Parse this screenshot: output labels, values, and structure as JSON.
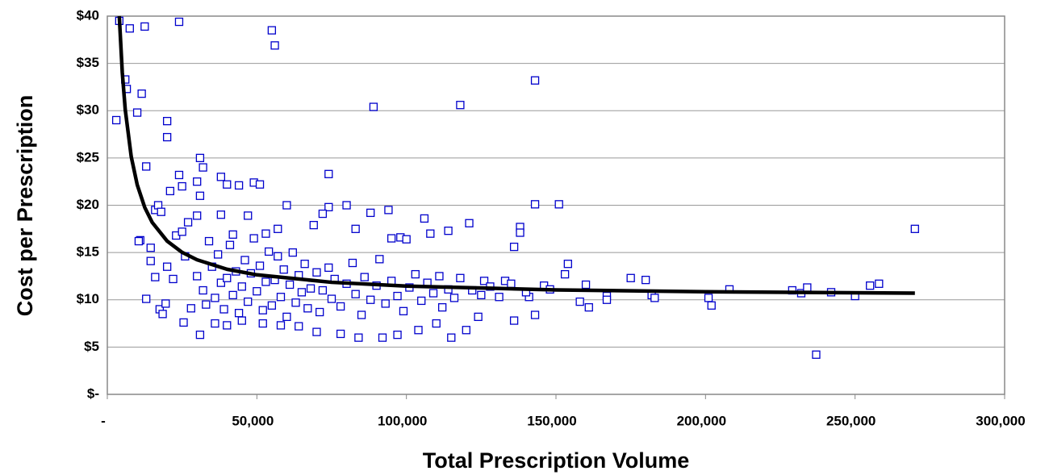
{
  "chart_data": {
    "type": "scatter",
    "x_label": "Total Prescription Volume",
    "y_label": "Cost per Prescription",
    "xlim": [
      0,
      300000
    ],
    "ylim": [
      0,
      40
    ],
    "xticks": [
      {
        "value": 0,
        "label": "-"
      },
      {
        "value": 50000,
        "label": "50,000"
      },
      {
        "value": 100000,
        "label": "100,000"
      },
      {
        "value": 150000,
        "label": "150,000"
      },
      {
        "value": 200000,
        "label": "200,000"
      },
      {
        "value": 250000,
        "label": "250,000"
      },
      {
        "value": 300000,
        "label": "300,000"
      }
    ],
    "yticks": [
      {
        "value": 0,
        "label": "$-"
      },
      {
        "value": 5,
        "label": "$5"
      },
      {
        "value": 10,
        "label": "$10"
      },
      {
        "value": 15,
        "label": "$15"
      },
      {
        "value": 20,
        "label": "$20"
      },
      {
        "value": 25,
        "label": "$25"
      },
      {
        "value": 30,
        "label": "$30"
      },
      {
        "value": 35,
        "label": "$35"
      },
      {
        "value": 40,
        "label": "$40"
      }
    ],
    "grid": true,
    "series": [
      {
        "type": "scatter",
        "color": "#0000cc",
        "x": [
          4000,
          3000,
          6000,
          6500,
          7500,
          10000,
          11500,
          12500,
          20000,
          20000,
          24000,
          55000,
          56000,
          89000,
          118000,
          143000,
          237000,
          270000,
          143000,
          151000,
          13000,
          31000,
          32000,
          24000,
          38000,
          74000,
          49000,
          51000,
          44000,
          30000,
          40000,
          25000,
          21000,
          31000,
          60000,
          80000,
          74000,
          94000,
          88000,
          72000,
          16000,
          17000,
          18000,
          30000,
          69000,
          106000,
          121000,
          138000,
          136000,
          138000,
          83000,
          108000,
          114000,
          98000,
          100000,
          95000,
          11000,
          10500,
          14500,
          14500,
          13000,
          16000,
          17500,
          18500,
          19500,
          25500,
          31000,
          175000,
          180000,
          154000,
          153000,
          160000,
          161000,
          158000,
          167000,
          167000,
          182000,
          183000,
          201000,
          202000,
          208000,
          229000,
          232000,
          234000,
          242000,
          250000,
          255000,
          258000,
          146000,
          143000,
          136000,
          148000,
          141000,
          133000,
          126000,
          124000,
          120000,
          115000,
          110000,
          104000,
          97000,
          92000,
          84000,
          78000,
          70000,
          64000,
          58000,
          52000,
          45000,
          40000,
          36000,
          30000,
          32000,
          33000,
          35000,
          36000,
          37000,
          38000,
          39000,
          40000,
          41000,
          42000,
          43000,
          44000,
          45000,
          46000,
          47000,
          48000,
          49000,
          50000,
          51000,
          52000,
          53000,
          54000,
          55000,
          56000,
          57000,
          58000,
          59000,
          60000,
          61000,
          62000,
          63000,
          64000,
          65000,
          66000,
          67000,
          68000,
          70000,
          71000,
          72000,
          74000,
          75000,
          76000,
          78000,
          80000,
          82000,
          83000,
          85000,
          86000,
          88000,
          90000,
          91000,
          93000,
          95000,
          97000,
          99000,
          101000,
          103000,
          105000,
          107000,
          109000,
          111000,
          112000,
          114000,
          116000,
          118000,
          122000,
          125000,
          128000,
          131000,
          135000,
          140000,
          20000,
          22000,
          23000,
          26000,
          27000,
          28000,
          25000,
          34000,
          38000,
          42000,
          47000,
          53000,
          57000
        ],
        "values": [
          39.5,
          29,
          33.3,
          32.3,
          38.7,
          29.8,
          31.8,
          38.9,
          28.9,
          27.2,
          39.4,
          38.5,
          36.9,
          30.4,
          30.6,
          33.2,
          4.2,
          17.5,
          20.1,
          20.1,
          24.1,
          25.0,
          24.0,
          23.2,
          23.0,
          23.3,
          22.4,
          22.2,
          22.1,
          22.5,
          22.2,
          22.0,
          21.5,
          21.0,
          20.0,
          20.0,
          19.8,
          19.5,
          19.2,
          19.1,
          19.5,
          20.0,
          19.3,
          18.9,
          17.9,
          18.6,
          18.1,
          17.7,
          15.6,
          17.1,
          17.5,
          17.0,
          17.3,
          16.6,
          16.4,
          16.5,
          16.3,
          16.2,
          15.5,
          14.1,
          10.1,
          12.4,
          9.0,
          8.5,
          9.6,
          7.6,
          6.3,
          12.3,
          12.1,
          13.8,
          12.7,
          11.6,
          9.2,
          9.8,
          10.4,
          10.0,
          10.5,
          10.2,
          10.2,
          9.4,
          11.1,
          11.0,
          10.7,
          11.3,
          10.8,
          10.4,
          11.5,
          11.7,
          11.5,
          8.4,
          7.8,
          11.1,
          10.3,
          12.0,
          12.0,
          8.2,
          6.8,
          6.0,
          7.5,
          6.8,
          6.3,
          6.0,
          6.0,
          6.4,
          6.6,
          7.2,
          7.3,
          7.5,
          7.8,
          7.3,
          7.5,
          12.5,
          11.0,
          9.5,
          13.5,
          10.2,
          14.8,
          11.8,
          9.0,
          12.3,
          15.8,
          10.5,
          13.0,
          8.6,
          11.4,
          14.2,
          9.8,
          12.8,
          16.5,
          10.9,
          13.6,
          8.9,
          11.9,
          15.1,
          9.4,
          12.1,
          14.6,
          10.3,
          13.2,
          8.2,
          11.6,
          15.0,
          9.7,
          12.6,
          10.8,
          13.8,
          9.1,
          11.2,
          12.9,
          8.7,
          11.0,
          13.4,
          10.1,
          12.2,
          9.3,
          11.7,
          13.9,
          10.6,
          8.4,
          12.4,
          10.0,
          11.5,
          14.3,
          9.6,
          12.0,
          10.4,
          8.8,
          11.3,
          12.7,
          9.9,
          11.8,
          10.7,
          12.5,
          9.2,
          11.1,
          10.2,
          12.3,
          11.0,
          10.5,
          11.4,
          10.3,
          11.7,
          10.8,
          13.5,
          12.2,
          16.8,
          14.6,
          18.2,
          9.1,
          17.2,
          16.2,
          19.0,
          16.9,
          18.9,
          17.0,
          17.5
        ]
      },
      {
        "type": "line",
        "color": "#000000",
        "x": [
          4000,
          5000,
          6000,
          8000,
          10000,
          12500,
          15000,
          20000,
          25000,
          30000,
          40000,
          50000,
          75000,
          100000,
          150000,
          200000,
          270000
        ],
        "values": [
          40.0,
          34.05,
          30.09,
          25.13,
          22.16,
          19.78,
          18.19,
          16.21,
          15.02,
          14.23,
          13.23,
          12.64,
          11.85,
          11.45,
          11.05,
          10.85,
          10.7
        ]
      }
    ]
  }
}
